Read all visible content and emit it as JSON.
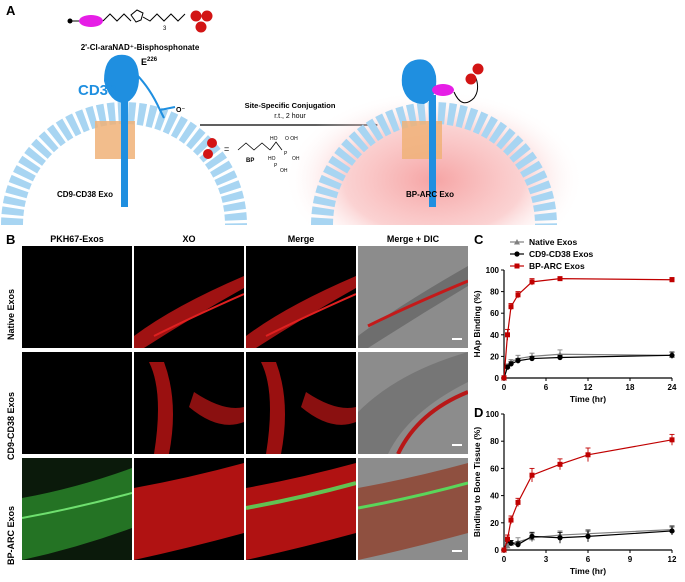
{
  "panel_a": {
    "letter": "A",
    "compound_label": "2'-Cl-araNAD⁺-Bisphosphonate",
    "plus": "+",
    "cd38_label": "CD38",
    "residue_label": "E",
    "residue_sup": "226",
    "charge_label": "O⁻",
    "reaction_line1": "Site-Specific Conjugation",
    "reaction_line2": "r.t., 2 hour",
    "bp_equals": "=",
    "bp_label": "BP",
    "left_exo_label": "CD9-CD38 Exo",
    "right_exo_label": "BP-ARC Exo",
    "linker_sub": "3",
    "colors": {
      "magenta": "#e61ee6",
      "blue": "#1f8fe0",
      "red": "#d21414",
      "membrane": "#a8d5f2",
      "glow": "#f7a8a8"
    }
  },
  "panel_b": {
    "letter": "B",
    "columns": [
      "PKH67-Exos",
      "XO",
      "Merge",
      "Merge + DIC"
    ],
    "rows": [
      "Native Exos",
      "CD9-CD38 Exos",
      "BP-ARC Exos"
    ]
  },
  "chart_data": [
    {
      "panel": "C",
      "type": "line",
      "ylabel": "HAp Binding (%)",
      "xlabel": "Time (hr)",
      "xlim": [
        0,
        24
      ],
      "ylim": [
        0,
        100
      ],
      "xticks": [
        0,
        6,
        12,
        18,
        24
      ],
      "yticks": [
        0,
        20,
        40,
        60,
        80,
        100
      ],
      "legend_position": "top",
      "series": [
        {
          "name": "Native Exos",
          "color": "#808080",
          "marker": "triangle",
          "x": [
            0,
            0.5,
            1,
            2,
            4,
            8,
            24
          ],
          "y": [
            0,
            11,
            15,
            18,
            20,
            22,
            21
          ],
          "err": [
            2,
            2,
            2,
            3,
            3,
            4,
            3
          ]
        },
        {
          "name": "CD9-CD38 Exos",
          "color": "#000000",
          "marker": "circle",
          "x": [
            0,
            0.5,
            1,
            2,
            4,
            8,
            24
          ],
          "y": [
            0,
            10,
            13,
            16,
            18,
            19,
            21
          ],
          "err": [
            2,
            2,
            2,
            2,
            2,
            2,
            3
          ]
        },
        {
          "name": "BP-ARC Exos",
          "color": "#c00000",
          "marker": "square",
          "x": [
            0,
            0.5,
            1,
            2,
            4,
            8,
            24
          ],
          "y": [
            0,
            40,
            66,
            77,
            89,
            92,
            91
          ],
          "err": [
            2,
            5,
            3,
            3,
            3,
            1,
            2
          ]
        }
      ]
    },
    {
      "panel": "D",
      "type": "line",
      "ylabel": "Binding to Bone Tissue (%)",
      "xlabel": "Time (hr)",
      "xlim": [
        0,
        12
      ],
      "ylim": [
        0,
        100
      ],
      "xticks": [
        0,
        3,
        6,
        9,
        12
      ],
      "yticks": [
        0,
        20,
        40,
        60,
        80,
        100
      ],
      "series": [
        {
          "name": "Native Exos",
          "color": "#808080",
          "marker": "triangle",
          "x": [
            0,
            0.25,
            0.5,
            1,
            2,
            4,
            6,
            12
          ],
          "y": [
            0,
            3,
            5,
            6,
            9,
            11,
            12,
            15
          ],
          "err": [
            1,
            2,
            2,
            3,
            3,
            3,
            3,
            3
          ]
        },
        {
          "name": "CD9-CD38 Exos",
          "color": "#000000",
          "marker": "circle",
          "x": [
            0,
            0.25,
            0.5,
            1,
            2,
            4,
            6,
            12
          ],
          "y": [
            0,
            7,
            5,
            4,
            10,
            9,
            10,
            14
          ],
          "err": [
            1,
            2,
            2,
            2,
            3,
            4,
            4,
            3
          ]
        },
        {
          "name": "BP-ARC Exos",
          "color": "#c00000",
          "marker": "square",
          "x": [
            0,
            0.25,
            0.5,
            1,
            2,
            4,
            6,
            12
          ],
          "y": [
            0,
            8,
            22,
            35,
            55,
            63,
            70,
            81
          ],
          "err": [
            1,
            3,
            3,
            3,
            5,
            4,
            5,
            4
          ]
        }
      ]
    }
  ]
}
